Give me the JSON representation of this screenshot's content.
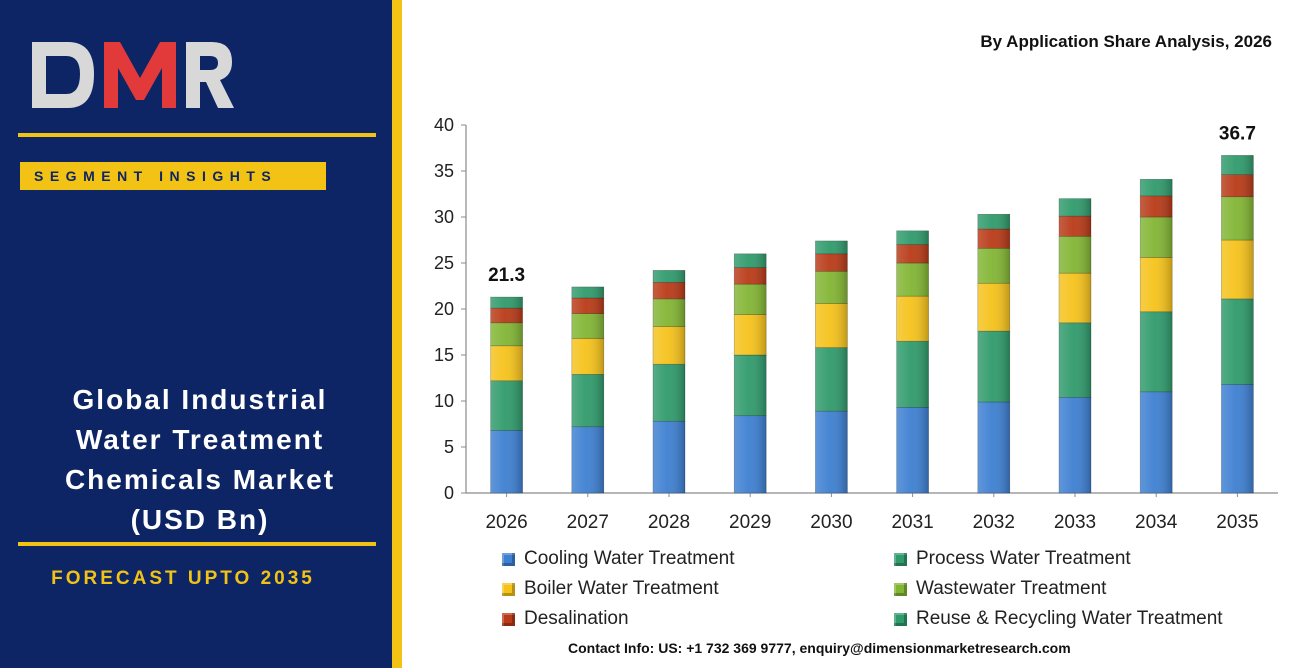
{
  "sidebar": {
    "logo_text": "DMR",
    "badge": "SEGMENT INSIGHTS",
    "title_lines": [
      "Global Industrial",
      "Water Treatment",
      "Chemicals Market",
      "(USD Bn)"
    ],
    "forecast": "FORECAST UPTO 2035"
  },
  "contact": "Contact Info: US: +1 732 369 9777, enquiry@dimensionmarketresearch.com",
  "chart_data": {
    "type": "bar",
    "stacked": true,
    "subtitle": "By Application Share Analysis, 2026",
    "categories": [
      "2026",
      "2027",
      "2028",
      "2029",
      "2030",
      "2031",
      "2032",
      "2033",
      "2034",
      "2035"
    ],
    "ylim": [
      0,
      40
    ],
    "yticks": [
      0,
      5,
      10,
      15,
      20,
      25,
      30,
      35,
      40
    ],
    "legend_position": "bottom",
    "grid": false,
    "series": [
      {
        "name": "Cooling Water Treatment",
        "color": "#3d7fd1",
        "values": [
          6.8,
          7.2,
          7.8,
          8.4,
          8.9,
          9.3,
          9.9,
          10.4,
          11.0,
          11.8
        ]
      },
      {
        "name": "Process Water Treatment",
        "color": "#2f9a6b",
        "values": [
          5.4,
          5.7,
          6.2,
          6.6,
          6.9,
          7.2,
          7.7,
          8.1,
          8.7,
          9.3
        ]
      },
      {
        "name": "Boiler Water Treatment",
        "color": "#f5c21a",
        "values": [
          3.8,
          3.9,
          4.1,
          4.4,
          4.8,
          4.9,
          5.2,
          5.4,
          5.9,
          6.4
        ]
      },
      {
        "name": "Wastewater Treatment",
        "color": "#82b533",
        "values": [
          2.5,
          2.7,
          3.0,
          3.3,
          3.5,
          3.6,
          3.8,
          4.0,
          4.4,
          4.7
        ]
      },
      {
        "name": "Desalination",
        "color": "#b83a17",
        "values": [
          1.6,
          1.7,
          1.8,
          1.8,
          1.9,
          2.0,
          2.1,
          2.2,
          2.3,
          2.4
        ]
      },
      {
        "name": "Reuse & Recycling Water Treatment",
        "color": "#2f9a6b",
        "values": [
          1.2,
          1.2,
          1.3,
          1.5,
          1.4,
          1.5,
          1.6,
          1.9,
          1.8,
          2.1
        ]
      }
    ],
    "data_labels": [
      {
        "category": "2026",
        "text": "21.3"
      },
      {
        "category": "2035",
        "text": "36.7"
      }
    ]
  }
}
